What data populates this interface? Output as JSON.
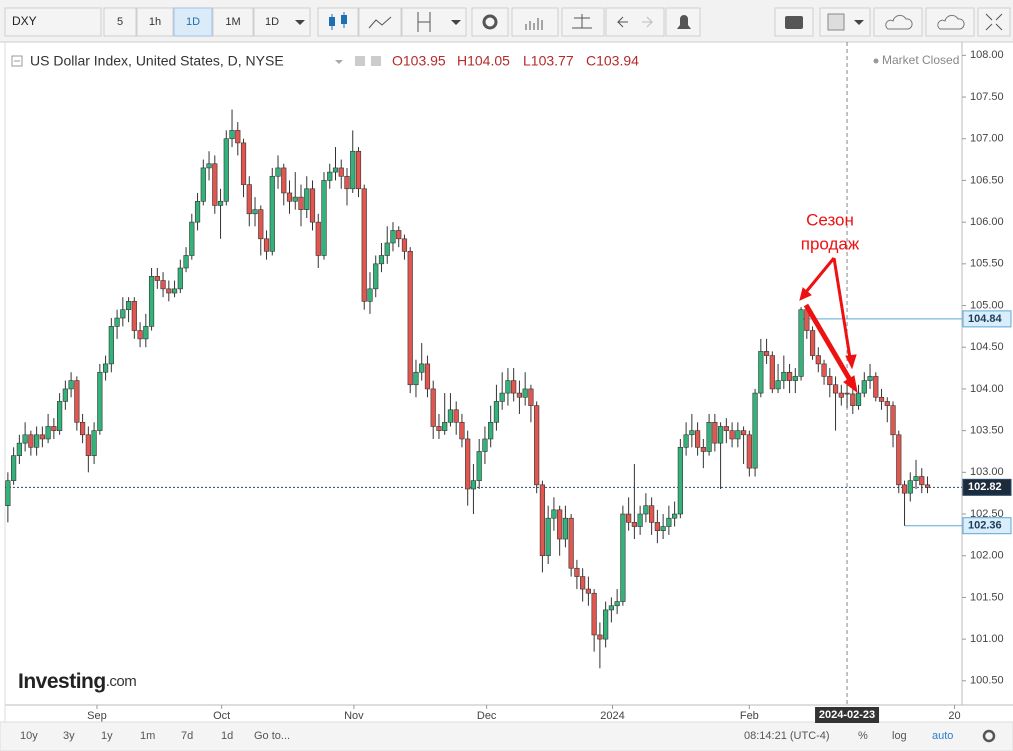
{
  "toolbar": {
    "symbol": "DXY",
    "intervals": [
      "5",
      "1h",
      "1D",
      "1M",
      "1D"
    ]
  },
  "header": {
    "title": "US Dollar Index, United States, D, NYSE",
    "ohlc": [
      "O103.95",
      "H104.05",
      "L103.77",
      "C103.94"
    ],
    "status": "Market Closed"
  },
  "logo": {
    "name": "Investing",
    "suffix": ".com"
  },
  "bottom_bar": {
    "ranges": [
      "10y",
      "3y",
      "1y",
      "1m",
      "7d",
      "1d"
    ],
    "go_to": "Go to...",
    "clock": "08:14:21 (UTC-4)",
    "percent": "%",
    "log": "log",
    "auto": "auto"
  },
  "chart_data": {
    "type": "candlestick",
    "up_color": "#34b27a",
    "down_color": "#e0574f",
    "xlim": [
      -0.5,
      166
    ],
    "ylim": [
      100.21,
      108.16
    ],
    "xticks": [
      {
        "value": 15.5,
        "label": "Sep"
      },
      {
        "value": 37.2,
        "label": "Oct"
      },
      {
        "value": 60.2,
        "label": "Nov"
      },
      {
        "value": 83.3,
        "label": "Dec"
      },
      {
        "value": 105.2,
        "label": "2024"
      },
      {
        "value": 129,
        "label": "Feb"
      },
      {
        "value": 164.7,
        "label": "20"
      }
    ],
    "yticks": [
      {
        "value": 100.5,
        "label": "100.50"
      },
      {
        "value": 101,
        "label": "101.00"
      },
      {
        "value": 101.5,
        "label": "101.50"
      },
      {
        "value": 102,
        "label": "102.00"
      },
      {
        "value": 102.5,
        "label": "102.50"
      },
      {
        "value": 103,
        "label": "103.00"
      },
      {
        "value": 103.5,
        "label": "103.50"
      },
      {
        "value": 104,
        "label": "104.00"
      },
      {
        "value": 104.5,
        "label": "104.50"
      },
      {
        "value": 105,
        "label": "105.00"
      },
      {
        "value": 105.5,
        "label": "105.50"
      },
      {
        "value": 106,
        "label": "106.00"
      },
      {
        "value": 106.5,
        "label": "106.50"
      },
      {
        "value": 107,
        "label": "107.00"
      },
      {
        "value": 107.5,
        "label": "107.50"
      },
      {
        "value": 108,
        "label": "108.00"
      }
    ],
    "price_lines": [
      {
        "value": 104.84,
        "color": "#5aa8d6",
        "style": "solid"
      },
      {
        "value": 102.82,
        "color": "#2a4a6a",
        "style": "dotted"
      },
      {
        "value": 102.36,
        "color": "#5aa8d6",
        "style": "solid"
      }
    ],
    "crosshair": {
      "x": 146,
      "label": "2024-02-23"
    },
    "annotation": [
      "Сезон",
      "продаж"
    ],
    "ohlc": [
      [
        102.6,
        103.0,
        102.4,
        102.9
      ],
      [
        102.9,
        103.3,
        102.85,
        103.2
      ],
      [
        103.2,
        103.45,
        103.1,
        103.35
      ],
      [
        103.35,
        103.6,
        103.25,
        103.45
      ],
      [
        103.45,
        103.5,
        103.2,
        103.3
      ],
      [
        103.3,
        103.55,
        103.2,
        103.45
      ],
      [
        103.45,
        103.55,
        103.3,
        103.4
      ],
      [
        103.4,
        103.7,
        103.35,
        103.55
      ],
      [
        103.55,
        103.65,
        103.4,
        103.5
      ],
      [
        103.5,
        103.95,
        103.45,
        103.85
      ],
      [
        103.85,
        104.1,
        103.75,
        104.0
      ],
      [
        104.0,
        104.2,
        103.9,
        104.1
      ],
      [
        104.1,
        104.15,
        103.5,
        103.6
      ],
      [
        103.6,
        103.7,
        103.35,
        103.45
      ],
      [
        103.45,
        103.55,
        103.0,
        103.2
      ],
      [
        103.2,
        103.6,
        103.1,
        103.5
      ],
      [
        103.5,
        104.3,
        103.45,
        104.2
      ],
      [
        104.2,
        104.4,
        104.1,
        104.3
      ],
      [
        104.3,
        104.85,
        104.2,
        104.75
      ],
      [
        104.75,
        104.95,
        104.6,
        104.85
      ],
      [
        104.85,
        105.1,
        104.75,
        104.95
      ],
      [
        104.95,
        105.1,
        104.8,
        105.05
      ],
      [
        105.05,
        105.1,
        104.6,
        104.7
      ],
      [
        104.7,
        104.8,
        104.5,
        104.6
      ],
      [
        104.6,
        104.9,
        104.5,
        104.75
      ],
      [
        104.75,
        105.45,
        104.7,
        105.35
      ],
      [
        105.35,
        105.45,
        105.2,
        105.3
      ],
      [
        105.3,
        105.4,
        105.1,
        105.2
      ],
      [
        105.2,
        105.3,
        105.05,
        105.15
      ],
      [
        105.15,
        105.3,
        105.1,
        105.2
      ],
      [
        105.2,
        105.55,
        105.15,
        105.45
      ],
      [
        105.45,
        105.7,
        105.4,
        105.6
      ],
      [
        105.6,
        106.1,
        105.55,
        106.0
      ],
      [
        106.0,
        106.35,
        105.9,
        106.25
      ],
      [
        106.25,
        106.75,
        106.2,
        106.65
      ],
      [
        106.65,
        106.85,
        106.5,
        106.7
      ],
      [
        106.7,
        106.8,
        106.1,
        106.2
      ],
      [
        106.2,
        106.4,
        105.8,
        106.25
      ],
      [
        106.25,
        107.1,
        106.2,
        107.0
      ],
      [
        107.0,
        107.35,
        106.9,
        107.1
      ],
      [
        107.1,
        107.2,
        106.8,
        106.95
      ],
      [
        106.95,
        107.0,
        106.3,
        106.45
      ],
      [
        106.45,
        106.55,
        105.95,
        106.1
      ],
      [
        106.1,
        106.3,
        105.95,
        106.15
      ],
      [
        106.15,
        106.2,
        105.6,
        105.8
      ],
      [
        105.8,
        105.9,
        105.55,
        105.65
      ],
      [
        105.65,
        106.65,
        105.6,
        106.55
      ],
      [
        106.55,
        106.8,
        106.4,
        106.65
      ],
      [
        106.65,
        106.7,
        106.2,
        106.35
      ],
      [
        106.35,
        106.5,
        106.1,
        106.25
      ],
      [
        106.25,
        106.6,
        106.15,
        106.3
      ],
      [
        106.3,
        106.45,
        105.95,
        106.15
      ],
      [
        106.15,
        106.55,
        106.05,
        106.4
      ],
      [
        106.4,
        106.5,
        105.9,
        106.0
      ],
      [
        106.0,
        106.1,
        105.45,
        105.6
      ],
      [
        105.6,
        106.6,
        105.55,
        106.5
      ],
      [
        106.5,
        106.7,
        106.4,
        106.6
      ],
      [
        106.6,
        106.9,
        106.5,
        106.65
      ],
      [
        106.65,
        106.75,
        106.4,
        106.55
      ],
      [
        106.55,
        106.65,
        106.2,
        106.4
      ],
      [
        106.4,
        107.1,
        106.35,
        106.85
      ],
      [
        106.85,
        106.9,
        106.3,
        106.4
      ],
      [
        106.4,
        106.45,
        104.95,
        105.05
      ],
      [
        105.05,
        105.4,
        104.9,
        105.2
      ],
      [
        105.2,
        105.6,
        105.1,
        105.5
      ],
      [
        105.5,
        105.75,
        105.4,
        105.6
      ],
      [
        105.6,
        105.95,
        105.5,
        105.75
      ],
      [
        105.75,
        106.0,
        105.65,
        105.9
      ],
      [
        105.9,
        105.95,
        105.7,
        105.8
      ],
      [
        105.8,
        105.85,
        105.55,
        105.65
      ],
      [
        105.65,
        105.7,
        103.95,
        104.05
      ],
      [
        104.05,
        104.35,
        103.9,
        104.2
      ],
      [
        104.2,
        104.55,
        104.1,
        104.3
      ],
      [
        104.3,
        104.4,
        103.9,
        104.0
      ],
      [
        104.0,
        104.1,
        103.4,
        103.55
      ],
      [
        103.55,
        103.7,
        103.4,
        103.5
      ],
      [
        103.5,
        103.95,
        103.45,
        103.6
      ],
      [
        103.6,
        103.95,
        103.55,
        103.75
      ],
      [
        103.75,
        103.85,
        103.45,
        103.6
      ],
      [
        103.6,
        103.7,
        103.3,
        103.4
      ],
      [
        103.4,
        103.5,
        102.6,
        102.8
      ],
      [
        102.8,
        103.1,
        102.5,
        102.9
      ],
      [
        102.9,
        103.4,
        102.8,
        103.25
      ],
      [
        103.25,
        103.55,
        103.1,
        103.4
      ],
      [
        103.4,
        103.8,
        103.3,
        103.6
      ],
      [
        103.6,
        104.05,
        103.5,
        103.85
      ],
      [
        103.85,
        104.2,
        103.75,
        103.95
      ],
      [
        103.95,
        104.25,
        103.8,
        104.1
      ],
      [
        104.1,
        104.25,
        103.85,
        103.95
      ],
      [
        103.95,
        104.1,
        103.7,
        103.9
      ],
      [
        103.9,
        104.2,
        103.8,
        104.0
      ],
      [
        104.0,
        104.05,
        103.6,
        103.8
      ],
      [
        103.8,
        103.85,
        102.75,
        102.85
      ],
      [
        102.85,
        102.9,
        101.8,
        102.0
      ],
      [
        102.0,
        102.6,
        101.9,
        102.45
      ],
      [
        102.45,
        102.7,
        102.3,
        102.55
      ],
      [
        102.55,
        102.6,
        102.0,
        102.2
      ],
      [
        102.2,
        102.6,
        102.1,
        102.45
      ],
      [
        102.45,
        102.5,
        101.75,
        101.85
      ],
      [
        101.85,
        101.95,
        101.6,
        101.75
      ],
      [
        101.75,
        101.85,
        101.45,
        101.6
      ],
      [
        101.6,
        101.75,
        101.4,
        101.55
      ],
      [
        101.55,
        101.6,
        100.85,
        101.05
      ],
      [
        101.05,
        101.2,
        100.65,
        101.0
      ],
      [
        101.0,
        101.45,
        100.9,
        101.35
      ],
      [
        101.35,
        101.5,
        101.2,
        101.4
      ],
      [
        101.4,
        101.6,
        101.3,
        101.45
      ],
      [
        101.45,
        102.6,
        101.4,
        102.5
      ],
      [
        102.5,
        102.7,
        102.3,
        102.4
      ],
      [
        102.4,
        103.1,
        102.2,
        102.35
      ],
      [
        102.35,
        102.6,
        102.25,
        102.5
      ],
      [
        102.5,
        102.75,
        102.4,
        102.6
      ],
      [
        102.6,
        102.7,
        102.25,
        102.4
      ],
      [
        102.4,
        102.55,
        102.15,
        102.3
      ],
      [
        102.3,
        102.5,
        102.2,
        102.35
      ],
      [
        102.35,
        102.6,
        102.25,
        102.45
      ],
      [
        102.45,
        102.65,
        102.35,
        102.5
      ],
      [
        102.5,
        103.4,
        102.45,
        103.3
      ],
      [
        103.3,
        103.6,
        103.2,
        103.45
      ],
      [
        103.45,
        103.7,
        103.3,
        103.5
      ],
      [
        103.5,
        103.6,
        103.2,
        103.3
      ],
      [
        103.3,
        103.4,
        103.05,
        103.25
      ],
      [
        103.25,
        103.7,
        103.2,
        103.6
      ],
      [
        103.6,
        103.7,
        103.25,
        103.35
      ],
      [
        103.35,
        103.6,
        102.8,
        103.55
      ],
      [
        103.55,
        103.65,
        103.35,
        103.5
      ],
      [
        103.5,
        103.6,
        103.3,
        103.4
      ],
      [
        103.4,
        103.6,
        103.3,
        103.5
      ],
      [
        103.5,
        103.55,
        103.1,
        103.45
      ],
      [
        103.45,
        103.5,
        102.95,
        103.05
      ],
      [
        103.05,
        104.0,
        102.95,
        103.95
      ],
      [
        103.95,
        104.6,
        103.9,
        104.45
      ],
      [
        104.45,
        104.6,
        104.3,
        104.4
      ],
      [
        104.4,
        104.45,
        103.95,
        104.0
      ],
      [
        104.0,
        104.3,
        103.95,
        104.1
      ],
      [
        104.1,
        104.4,
        104.0,
        104.2
      ],
      [
        104.2,
        104.3,
        103.95,
        104.1
      ],
      [
        104.1,
        104.25,
        103.95,
        104.15
      ],
      [
        104.15,
        104.98,
        104.1,
        104.95
      ],
      [
        104.95,
        104.98,
        104.6,
        104.7
      ],
      [
        104.7,
        104.75,
        104.35,
        104.4
      ],
      [
        104.4,
        104.5,
        104.2,
        104.3
      ],
      [
        104.3,
        104.35,
        104.05,
        104.15
      ],
      [
        104.15,
        104.25,
        103.9,
        104.05
      ],
      [
        104.05,
        104.15,
        103.5,
        103.95
      ],
      [
        103.95,
        104.05,
        103.8,
        103.9
      ],
      [
        103.95,
        104.05,
        103.77,
        103.94
      ],
      [
        103.94,
        104.0,
        103.7,
        103.8
      ],
      [
        103.8,
        104.05,
        103.75,
        103.95
      ],
      [
        103.95,
        104.2,
        103.9,
        104.1
      ],
      [
        104.1,
        104.3,
        104.0,
        104.15
      ],
      [
        104.15,
        104.2,
        103.85,
        103.9
      ],
      [
        103.9,
        104.0,
        103.75,
        103.85
      ],
      [
        103.85,
        103.9,
        103.6,
        103.8
      ],
      [
        103.8,
        103.85,
        103.3,
        103.45
      ],
      [
        103.45,
        103.5,
        102.75,
        102.85
      ],
      [
        102.85,
        102.9,
        102.36,
        102.75
      ],
      [
        102.75,
        103.0,
        102.65,
        102.9
      ],
      [
        102.9,
        103.15,
        102.8,
        102.95
      ],
      [
        102.95,
        103.05,
        102.75,
        102.85
      ],
      [
        102.85,
        102.95,
        102.75,
        102.82
      ]
    ]
  }
}
